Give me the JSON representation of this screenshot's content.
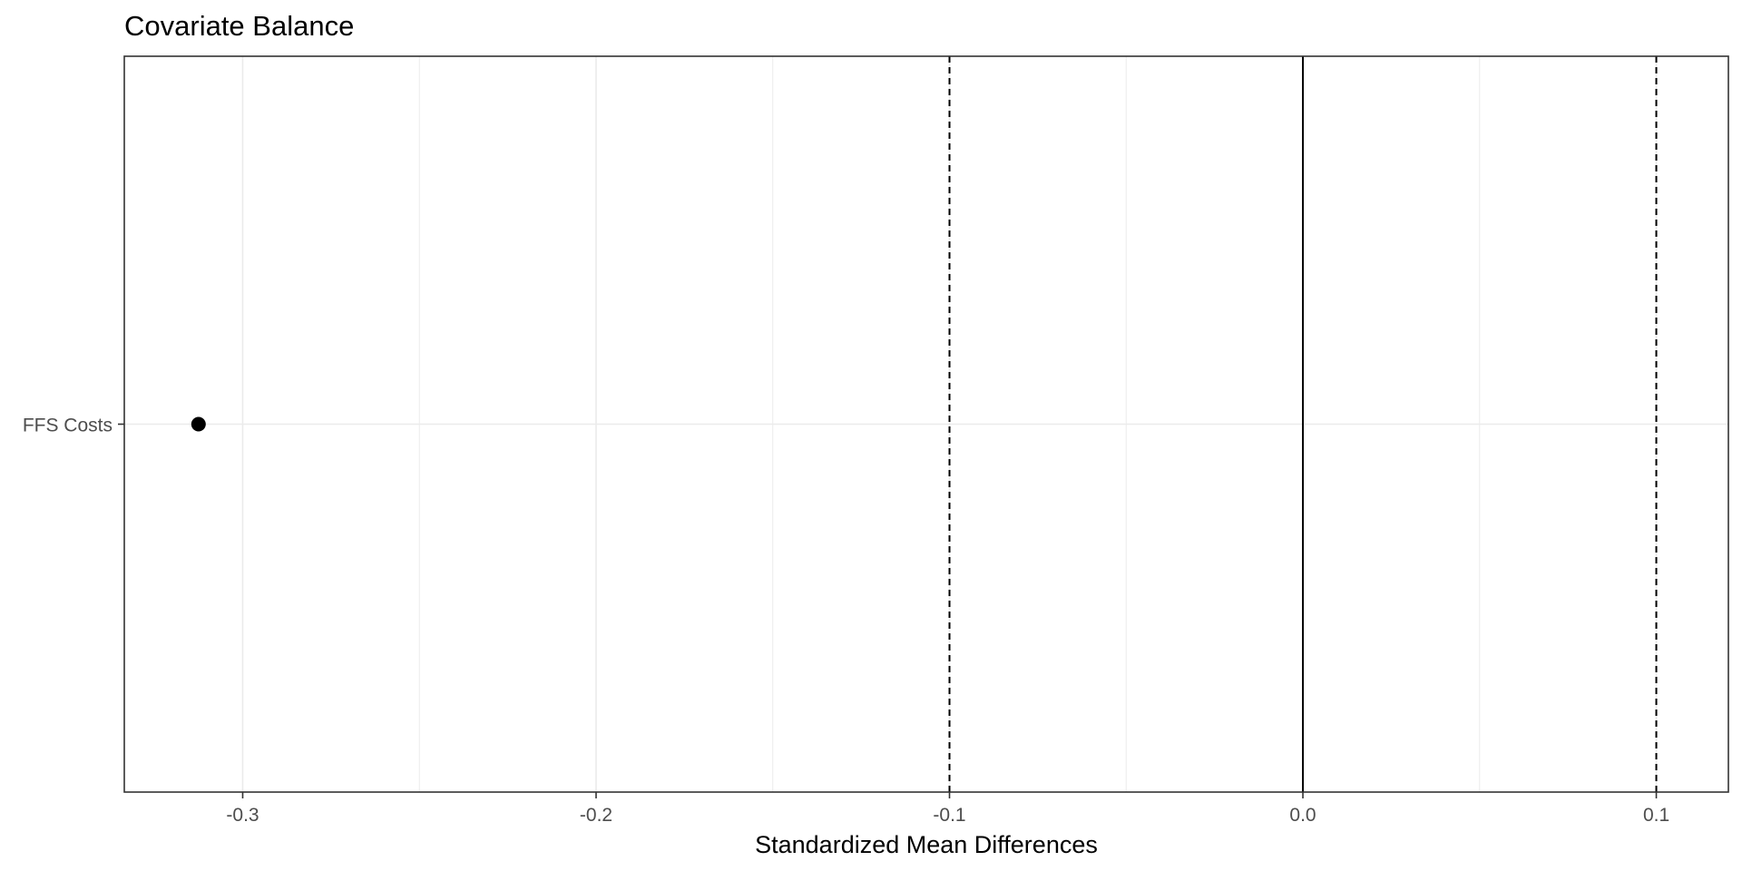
{
  "chart_data": {
    "type": "scatter",
    "title": "Covariate Balance",
    "xlabel": "Standardized Mean Differences",
    "ylabel": "",
    "xlim": [
      -0.3335,
      0.1204
    ],
    "x_ticks": [
      -0.3,
      -0.2,
      -0.1,
      0.0,
      0.1
    ],
    "x_tick_labels": [
      "-0.3",
      "-0.2",
      "-0.1",
      "0.0",
      "0.1"
    ],
    "x_minor_grid": [
      -0.25,
      -0.15,
      -0.05,
      0.05
    ],
    "categories": [
      "FFS Costs"
    ],
    "points": [
      {
        "category": "FFS Costs",
        "x": -0.3125
      }
    ],
    "reference_lines": [
      {
        "x": 0.0,
        "style": "solid"
      },
      {
        "x": -0.1,
        "style": "dashed"
      },
      {
        "x": 0.1,
        "style": "dashed"
      }
    ],
    "grid": true,
    "legend": "none",
    "colors": {
      "point": "#000000",
      "grid": "#ebebeb",
      "panel_border": "#333333",
      "reference": "#000000"
    }
  }
}
